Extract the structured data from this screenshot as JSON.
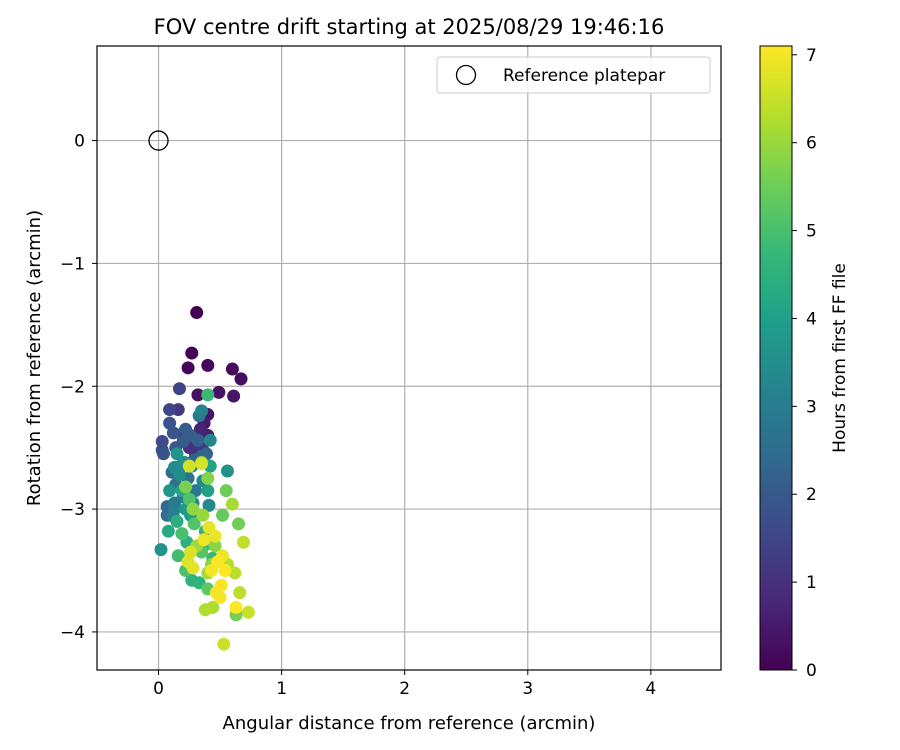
{
  "chart_data": {
    "type": "scatter",
    "title": "FOV centre drift starting at 2025/08/29 19:46:16",
    "xlabel": "Angular distance from reference (arcmin)",
    "ylabel": "Rotation from reference (arcmin)",
    "xlim": [
      -0.5,
      4.57
    ],
    "ylim": [
      -4.31,
      0.77
    ],
    "xticks": [
      0,
      1,
      2,
      3,
      4
    ],
    "yticks": [
      0,
      -1,
      -2,
      -3,
      -4
    ],
    "grid": true,
    "legend": {
      "placement": "top-right",
      "entries": [
        "Reference platepar"
      ]
    },
    "reference_point": {
      "name": "Reference platepar",
      "x": 0,
      "y": 0,
      "marker": "open-circle"
    },
    "colorbar": {
      "label": "Hours from first FF file",
      "ticks": [
        0,
        1,
        2,
        3,
        4,
        5,
        6,
        7
      ],
      "range": [
        0,
        7.1
      ],
      "colormap": "viridis",
      "colors": [
        "#440154",
        "#482878",
        "#3e4989",
        "#31688e",
        "#26828e",
        "#1f9e89",
        "#35b779",
        "#6ece58",
        "#b5de2b",
        "#fde725"
      ]
    },
    "series": [
      {
        "points": [
          [
            0.31,
            -1.4,
            0.0
          ],
          [
            0.27,
            -1.73,
            0.05
          ],
          [
            0.24,
            -1.85,
            0.1
          ],
          [
            0.4,
            -1.83,
            0.15
          ],
          [
            0.6,
            -1.86,
            0.2
          ],
          [
            0.67,
            -1.94,
            0.25
          ],
          [
            0.32,
            -2.07,
            0.3
          ],
          [
            0.49,
            -2.05,
            0.35
          ],
          [
            0.61,
            -2.08,
            0.4
          ],
          [
            0.4,
            -2.23,
            0.45
          ],
          [
            0.37,
            -2.3,
            0.5
          ],
          [
            0.4,
            -2.4,
            0.6
          ],
          [
            0.34,
            -2.35,
            0.7
          ],
          [
            0.28,
            -2.42,
            0.8
          ],
          [
            0.19,
            -2.39,
            0.9
          ],
          [
            0.23,
            -2.38,
            0.95
          ],
          [
            0.25,
            -2.5,
            1.0
          ],
          [
            0.3,
            -2.55,
            1.05
          ],
          [
            0.33,
            -2.47,
            1.1
          ],
          [
            0.36,
            -2.52,
            1.15
          ],
          [
            0.16,
            -2.19,
            1.2
          ],
          [
            0.17,
            -2.02,
            1.4
          ],
          [
            0.09,
            -2.19,
            1.5
          ],
          [
            0.03,
            -2.45,
            1.6
          ],
          [
            0.03,
            -2.52,
            1.7
          ],
          [
            0.04,
            -2.55,
            1.8
          ],
          [
            0.09,
            -2.3,
            1.85
          ],
          [
            0.12,
            -2.38,
            1.9
          ],
          [
            0.14,
            -2.5,
            1.95
          ],
          [
            0.2,
            -2.45,
            2.0
          ],
          [
            0.22,
            -2.35,
            2.05
          ],
          [
            0.26,
            -2.4,
            2.1
          ],
          [
            0.29,
            -2.6,
            2.15
          ],
          [
            0.32,
            -2.44,
            2.2
          ],
          [
            0.35,
            -2.57,
            2.25
          ],
          [
            0.39,
            -2.55,
            2.3
          ],
          [
            0.18,
            -2.65,
            2.35
          ],
          [
            0.07,
            -2.98,
            2.4
          ],
          [
            0.07,
            -3.05,
            2.5
          ],
          [
            0.11,
            -2.7,
            2.55
          ],
          [
            0.14,
            -2.8,
            2.6
          ],
          [
            0.24,
            -2.75,
            2.7
          ],
          [
            0.27,
            -2.65,
            2.8
          ],
          [
            0.33,
            -2.24,
            2.85
          ],
          [
            0.3,
            -2.85,
            2.9
          ],
          [
            0.13,
            -2.95,
            2.95
          ],
          [
            0.2,
            -2.9,
            3.0
          ],
          [
            0.13,
            -3.0,
            3.05
          ],
          [
            0.12,
            -3.06,
            3.1
          ],
          [
            0.35,
            -2.2,
            3.15
          ],
          [
            0.42,
            -2.44,
            3.2
          ],
          [
            0.28,
            -2.95,
            3.25
          ],
          [
            0.36,
            -2.77,
            3.3
          ],
          [
            0.41,
            -2.97,
            3.35
          ],
          [
            0.13,
            -2.66,
            3.4
          ],
          [
            0.17,
            -2.72,
            3.45
          ],
          [
            0.21,
            -2.62,
            3.5
          ],
          [
            0.56,
            -2.69,
            3.55
          ],
          [
            0.02,
            -3.33,
            3.6
          ],
          [
            0.09,
            -2.85,
            3.65
          ],
          [
            0.15,
            -2.55,
            3.7
          ],
          [
            0.22,
            -3.0,
            3.8
          ],
          [
            0.26,
            -3.05,
            3.9
          ],
          [
            0.4,
            -2.85,
            4.0
          ],
          [
            0.42,
            -2.65,
            4.1
          ],
          [
            0.19,
            -2.85,
            4.2
          ],
          [
            0.08,
            -3.18,
            4.3
          ],
          [
            0.15,
            -3.1,
            4.4
          ],
          [
            0.23,
            -3.27,
            4.5
          ],
          [
            0.27,
            -3.58,
            4.55
          ],
          [
            0.33,
            -3.6,
            4.6
          ],
          [
            0.38,
            -3.18,
            4.65
          ],
          [
            0.4,
            -3.28,
            4.7
          ],
          [
            0.44,
            -3.4,
            4.75
          ],
          [
            0.4,
            -2.07,
            4.8
          ],
          [
            0.16,
            -3.38,
            4.9
          ],
          [
            0.19,
            -3.2,
            5.0
          ],
          [
            0.22,
            -3.5,
            5.05
          ],
          [
            0.25,
            -2.92,
            5.1
          ],
          [
            0.29,
            -3.12,
            5.15
          ],
          [
            0.35,
            -3.35,
            5.2
          ],
          [
            0.4,
            -3.65,
            5.3
          ],
          [
            0.52,
            -3.05,
            5.4
          ],
          [
            0.55,
            -2.85,
            5.5
          ],
          [
            0.65,
            -3.12,
            5.55
          ],
          [
            0.63,
            -3.86,
            5.6
          ],
          [
            0.22,
            -2.82,
            5.65
          ],
          [
            0.35,
            -2.62,
            5.7
          ],
          [
            0.4,
            -2.75,
            5.75
          ],
          [
            0.43,
            -3.45,
            5.8
          ],
          [
            0.46,
            -3.3,
            5.85
          ],
          [
            0.28,
            -3.0,
            5.9
          ],
          [
            0.36,
            -3.05,
            6.0
          ],
          [
            0.31,
            -3.3,
            6.05
          ],
          [
            0.4,
            -3.52,
            6.1
          ],
          [
            0.6,
            -2.96,
            6.15
          ],
          [
            0.44,
            -3.8,
            6.2
          ],
          [
            0.38,
            -3.82,
            6.25
          ],
          [
            0.56,
            -3.45,
            6.3
          ],
          [
            0.62,
            -3.52,
            6.35
          ],
          [
            0.66,
            -3.68,
            6.4
          ],
          [
            0.69,
            -3.27,
            6.45
          ],
          [
            0.73,
            -3.84,
            6.5
          ],
          [
            0.53,
            -4.1,
            6.55
          ],
          [
            0.25,
            -2.65,
            6.6
          ],
          [
            0.35,
            -2.63,
            6.65
          ],
          [
            0.26,
            -3.35,
            6.7
          ],
          [
            0.24,
            -3.43,
            6.75
          ],
          [
            0.28,
            -3.48,
            6.8
          ],
          [
            0.41,
            -3.15,
            6.85
          ],
          [
            0.46,
            -3.22,
            6.9
          ],
          [
            0.52,
            -3.38,
            6.95
          ],
          [
            0.47,
            -3.68,
            7.0
          ],
          [
            0.5,
            -3.72,
            7.02
          ],
          [
            0.51,
            -3.62,
            7.05
          ],
          [
            0.54,
            -3.5,
            7.08
          ],
          [
            0.63,
            -3.8,
            7.1
          ],
          [
            0.48,
            -3.43,
            7.1
          ],
          [
            0.43,
            -3.5,
            6.98
          ],
          [
            0.37,
            -3.25,
            6.92
          ]
        ]
      }
    ]
  }
}
